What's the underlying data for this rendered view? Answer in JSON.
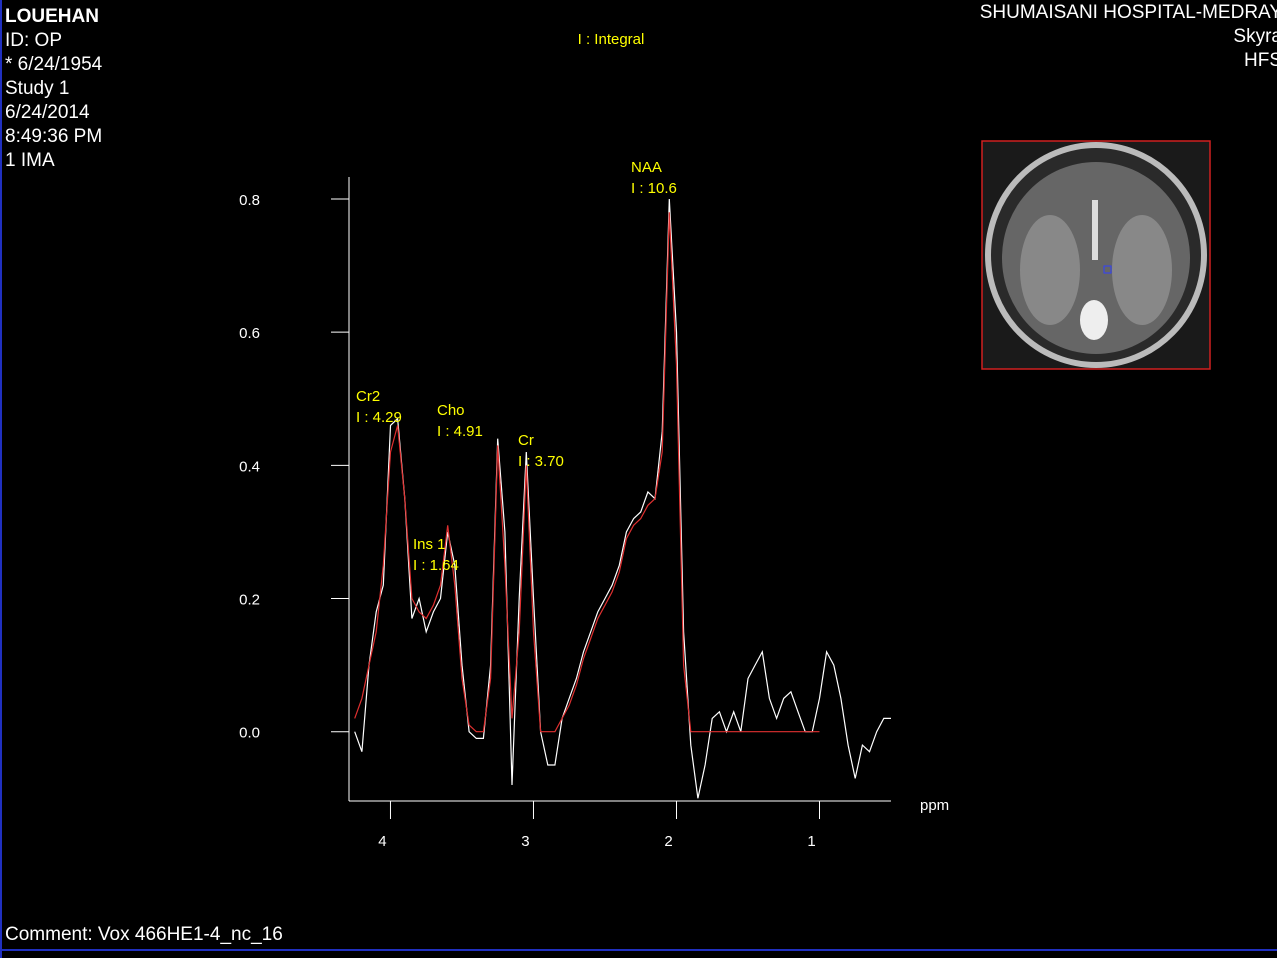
{
  "header": {
    "left": [
      "LOUEHAN",
      "ID: OP",
      "* 6/24/1954",
      "Study 1",
      "6/24/2014",
      "8:49:36 PM",
      "1 IMA"
    ],
    "right": [
      "SHUMAISANI HOSPITAL-MEDRAY",
      "Skyra",
      "HFS"
    ],
    "comment": "Comment: Vox 466HE1-4_nc_16"
  },
  "chart_data": {
    "type": "line",
    "legend_text": "I : Integral",
    "x_label": "ppm",
    "xlim": [
      4.29,
      0.5
    ],
    "ylim": [
      -0.104,
      0.833
    ],
    "xticks": [
      4,
      3,
      2,
      1
    ],
    "yticks": [
      {
        "value": 0,
        "label": "0.0"
      },
      0.2,
      0.4,
      0.6,
      0.8
    ],
    "annotations": [
      {
        "label": "Cr2",
        "integral": "I : 4.29"
      },
      {
        "label": "Cho",
        "integral": "I : 4.91"
      },
      {
        "label": "Cr",
        "integral": "I : 3.70"
      },
      {
        "label": "Ins 1",
        "integral": "I : 1.64"
      },
      {
        "label": "NAA",
        "integral": "I : 10.6"
      }
    ],
    "x": [
      4.25,
      4.2,
      4.15,
      4.1,
      4.05,
      4.0,
      3.95,
      3.9,
      3.85,
      3.8,
      3.75,
      3.7,
      3.65,
      3.6,
      3.55,
      3.5,
      3.45,
      3.4,
      3.35,
      3.3,
      3.25,
      3.2,
      3.15,
      3.1,
      3.05,
      3.0,
      2.95,
      2.9,
      2.85,
      2.8,
      2.75,
      2.7,
      2.65,
      2.6,
      2.55,
      2.5,
      2.45,
      2.4,
      2.35,
      2.3,
      2.25,
      2.2,
      2.15,
      2.1,
      2.05,
      2.0,
      1.95,
      1.9,
      1.85,
      1.8,
      1.75,
      1.7,
      1.65,
      1.6,
      1.55,
      1.5,
      1.45,
      1.4,
      1.35,
      1.3,
      1.25,
      1.2,
      1.15,
      1.1,
      1.05,
      1.0,
      0.95,
      0.9,
      0.85,
      0.8,
      0.75,
      0.7,
      0.65,
      0.6,
      0.55,
      0.5
    ],
    "series": [
      {
        "color": "#ffffff",
        "values": [
          0.0,
          -0.03,
          0.1,
          0.18,
          0.22,
          0.46,
          0.47,
          0.35,
          0.17,
          0.2,
          0.15,
          0.18,
          0.2,
          0.3,
          0.25,
          0.1,
          0.0,
          -0.01,
          -0.01,
          0.1,
          0.44,
          0.3,
          -0.08,
          0.2,
          0.42,
          0.2,
          0.0,
          -0.05,
          -0.05,
          0.02,
          0.05,
          0.08,
          0.12,
          0.15,
          0.18,
          0.2,
          0.22,
          0.25,
          0.3,
          0.32,
          0.33,
          0.36,
          0.35,
          0.45,
          0.8,
          0.6,
          0.15,
          -0.02,
          -0.1,
          -0.05,
          0.02,
          0.03,
          0.0,
          0.03,
          0.0,
          0.08,
          0.1,
          0.12,
          0.05,
          0.02,
          0.05,
          0.06,
          0.03,
          0.0,
          0.0,
          0.05,
          0.12,
          0.1,
          0.05,
          -0.02,
          -0.07,
          -0.02,
          -0.03,
          0.0,
          0.02,
          0.02
        ]
      },
      {
        "color": "#e03030",
        "values": [
          0.02,
          0.05,
          0.1,
          0.15,
          0.25,
          0.42,
          0.46,
          0.35,
          0.2,
          0.18,
          0.17,
          0.19,
          0.22,
          0.31,
          0.22,
          0.08,
          0.01,
          0.0,
          0.0,
          0.08,
          0.43,
          0.25,
          0.02,
          0.15,
          0.4,
          0.15,
          0.0,
          0.0,
          0.0,
          0.02,
          0.04,
          0.07,
          0.11,
          0.14,
          0.17,
          0.19,
          0.21,
          0.24,
          0.29,
          0.31,
          0.32,
          0.34,
          0.35,
          0.42,
          0.78,
          0.55,
          0.1,
          0.0,
          0.0,
          0.0,
          0.0,
          0.0,
          0.0,
          0.0,
          0.0,
          0.0,
          0.0,
          0.0,
          0.0,
          0.0,
          0.0,
          0.0,
          0.0,
          0.0,
          0.0,
          0.0,
          null,
          null,
          null,
          null,
          null,
          null,
          null,
          null,
          null,
          null
        ]
      }
    ]
  }
}
